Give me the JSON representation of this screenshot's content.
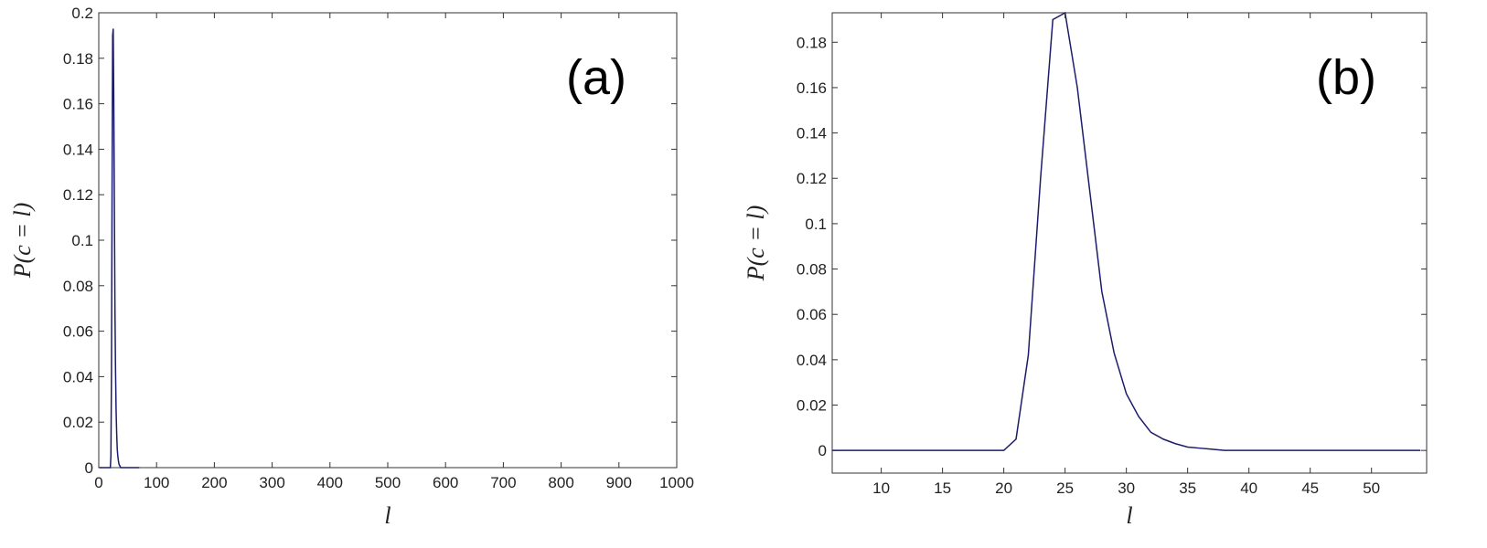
{
  "chart_data": [
    {
      "type": "line",
      "annotation": "(a)",
      "y_label": "P(c = l)",
      "x_label": "l",
      "x": [
        1,
        20,
        21,
        22,
        23,
        24,
        25,
        26,
        27,
        28,
        29,
        30,
        31,
        32,
        33,
        34,
        35,
        36,
        37,
        38,
        70
      ],
      "series": [
        {
          "color": "#1c1c6b",
          "values": [
            0,
            0,
            0.005,
            0.042,
            0.12,
            0.19,
            0.193,
            0.16,
            0.115,
            0.07,
            0.043,
            0.025,
            0.015,
            0.008,
            0.005,
            0.003,
            0.0015,
            0.001,
            0.0005,
            0,
            0
          ]
        }
      ],
      "xlim": [
        0,
        1000
      ],
      "xticks": [
        0,
        100,
        200,
        300,
        400,
        500,
        600,
        700,
        800,
        900,
        1000
      ],
      "ylim": [
        0,
        0.2
      ],
      "yticks": [
        0,
        0.02,
        0.04,
        0.06,
        0.08,
        0.1,
        0.12,
        0.14,
        0.16,
        0.18,
        0.2
      ]
    },
    {
      "type": "line",
      "annotation": "(b)",
      "y_label": "P(c = l)",
      "x_label": "l",
      "x": [
        6,
        20,
        21,
        22,
        23,
        24,
        25,
        26,
        27,
        28,
        29,
        30,
        31,
        32,
        33,
        34,
        35,
        36,
        37,
        38,
        54
      ],
      "series": [
        {
          "color": "#1c1c6b",
          "values": [
            0,
            0,
            0.005,
            0.042,
            0.12,
            0.19,
            0.193,
            0.16,
            0.115,
            0.07,
            0.043,
            0.025,
            0.015,
            0.008,
            0.005,
            0.003,
            0.0015,
            0.001,
            0.0005,
            0,
            0
          ]
        }
      ],
      "xlim": [
        6,
        54.5
      ],
      "xticks": [
        10,
        15,
        20,
        25,
        30,
        35,
        40,
        45,
        50
      ],
      "ylim": [
        -0.01,
        0.193
      ],
      "yticks": [
        0,
        0.02,
        0.04,
        0.06,
        0.08,
        0.1,
        0.12,
        0.14,
        0.16,
        0.18
      ]
    }
  ]
}
